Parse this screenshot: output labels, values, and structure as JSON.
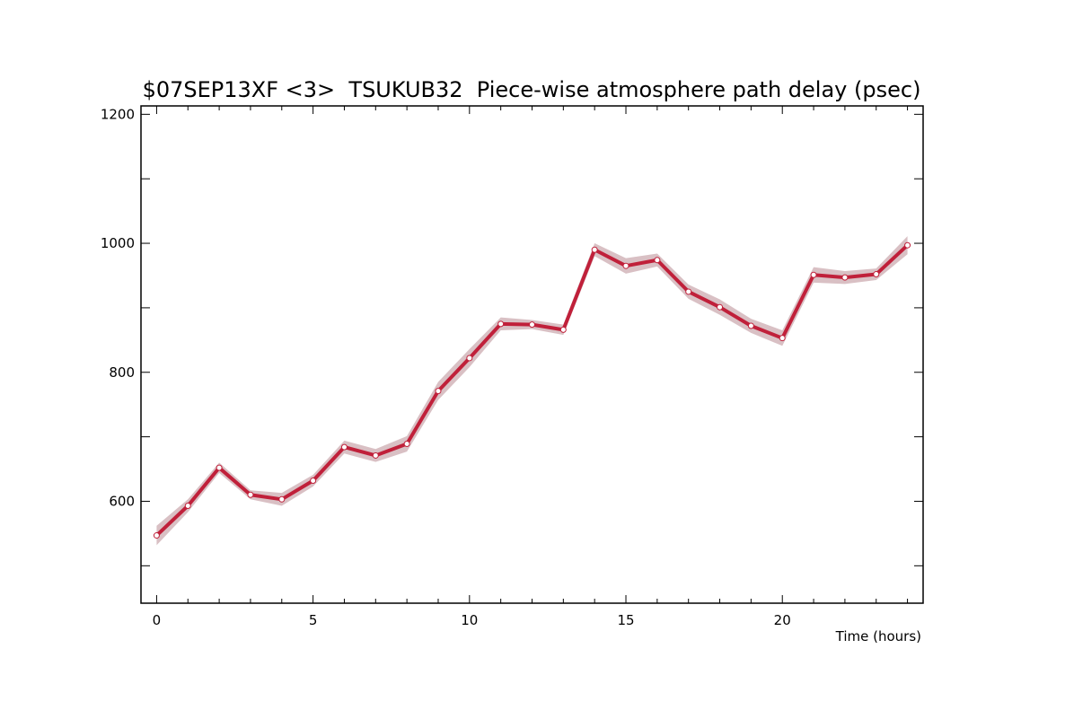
{
  "chart_data": {
    "type": "line",
    "title": "$07SEP13XF <3>  TSUKUB32  Piece-wise atmosphere path delay (psec)",
    "xlabel": "Time (hours)",
    "ylabel": "",
    "xlim": [
      -0.5,
      24.5
    ],
    "ylim": [
      442,
      1213
    ],
    "x_ticks": [
      0,
      5,
      10,
      15,
      20
    ],
    "x_tick_labels": [
      "0",
      "5",
      "10",
      "15",
      "20"
    ],
    "x_minor_ticks": [
      0,
      1,
      2,
      3,
      4,
      5,
      6,
      7,
      8,
      9,
      10,
      11,
      12,
      13,
      14,
      15,
      16,
      17,
      18,
      19,
      20,
      21,
      22,
      23,
      24
    ],
    "y_ticks": [
      600,
      800,
      1000,
      1200
    ],
    "y_tick_labels": [
      "600",
      "800",
      "1000",
      "1200"
    ],
    "y_minor_ticks": [
      500,
      700,
      900,
      1100
    ],
    "grid": false,
    "series": [
      {
        "x": [
          0,
          1,
          2,
          3,
          4,
          5,
          6,
          7,
          8,
          9,
          10,
          11,
          12,
          13,
          14,
          15,
          16,
          17,
          18,
          19,
          20,
          21,
          22,
          23,
          24
        ],
        "values": [
          547,
          593,
          652,
          610,
          603,
          632,
          684,
          671,
          689,
          771,
          822,
          875,
          874,
          866,
          990,
          965,
          974,
          925,
          901,
          872,
          853,
          951,
          947,
          952,
          997
        ],
        "error": [
          15,
          10,
          8,
          7,
          10,
          9,
          10,
          10,
          12,
          14,
          14,
          10,
          7,
          8,
          10,
          12,
          10,
          11,
          12,
          11,
          12,
          12,
          10,
          9,
          14
        ],
        "color": "#c0203a",
        "band_color": "#d9c0c4",
        "marker_fill": "#ffffff"
      }
    ]
  }
}
